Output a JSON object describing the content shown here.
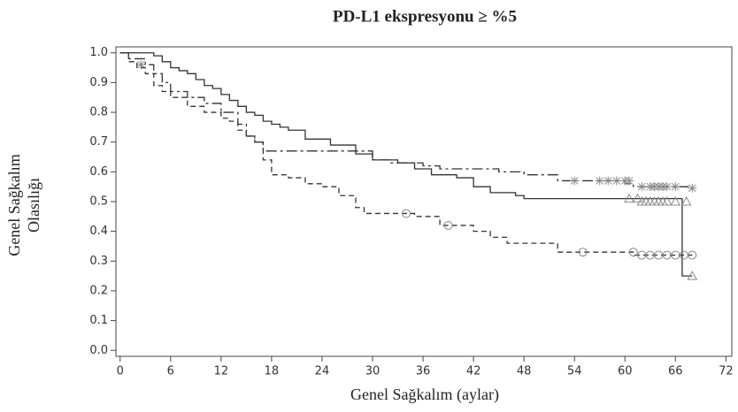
{
  "chart_data": {
    "type": "kaplan-meier",
    "title": "PD-L1 ekspresyonu ≥ %5",
    "x_label": "Genel Sağkalım (aylar)",
    "y_label": [
      "Genel Sağkalım",
      "Olasılığı"
    ],
    "xlim": [
      -0.5,
      72.7
    ],
    "ylim": [
      -0.02,
      1.02
    ],
    "xticks": [
      0,
      6,
      12,
      18,
      24,
      30,
      36,
      42,
      48,
      54,
      60,
      66,
      72
    ],
    "yticks": [
      {
        "value": 0,
        "label": "0.0"
      },
      0.1,
      0.2,
      0.3,
      0.4,
      0.5,
      0.6,
      0.7,
      0.8,
      0.9,
      {
        "value": 1,
        "label": "1.0"
      }
    ],
    "series": [
      {
        "style": "solid",
        "color": "#333333",
        "marker_color": "#888888",
        "censor_marker": "triangle",
        "x": [
          0,
          4,
          5,
          6,
          7,
          8,
          9,
          10,
          11,
          12,
          13,
          14,
          15,
          16,
          17,
          18,
          19,
          20,
          22,
          25,
          28,
          30,
          33,
          35,
          37,
          40,
          42,
          44,
          47,
          48,
          66.8
        ],
        "y": [
          1.0,
          0.99,
          0.97,
          0.95,
          0.94,
          0.93,
          0.91,
          0.89,
          0.88,
          0.86,
          0.84,
          0.82,
          0.8,
          0.79,
          0.77,
          0.76,
          0.75,
          0.74,
          0.71,
          0.69,
          0.66,
          0.64,
          0.63,
          0.61,
          0.59,
          0.58,
          0.55,
          0.53,
          0.52,
          0.51,
          0.25
        ],
        "censor_x": [
          60.5,
          61.5,
          62,
          62.5,
          63,
          63.5,
          64,
          64.5,
          65,
          66,
          67.3,
          68
        ],
        "censor_y": [
          0.51,
          0.51,
          0.5,
          0.5,
          0.5,
          0.5,
          0.5,
          0.5,
          0.5,
          0.5,
          0.5,
          0.25
        ]
      },
      {
        "style": "dashdot",
        "color": "#333333",
        "marker_color": "#888888",
        "censor_marker": "asterisk",
        "x": [
          0,
          1,
          3,
          4,
          5,
          6,
          8,
          10,
          12,
          14,
          15,
          16,
          17,
          30,
          32,
          36,
          38,
          45,
          48,
          52,
          60,
          61
        ],
        "y": [
          1.0,
          0.98,
          0.96,
          0.93,
          0.9,
          0.87,
          0.85,
          0.83,
          0.8,
          0.76,
          0.72,
          0.7,
          0.67,
          0.64,
          0.63,
          0.62,
          0.61,
          0.6,
          0.59,
          0.57,
          0.56,
          0.55
        ],
        "censor_x": [
          2.5,
          54,
          57,
          58,
          59,
          60,
          60.5,
          62,
          63,
          63.5,
          64,
          64.5,
          65,
          66,
          68
        ],
        "censor_y": [
          0.96,
          0.57,
          0.57,
          0.57,
          0.57,
          0.57,
          0.57,
          0.55,
          0.55,
          0.55,
          0.55,
          0.55,
          0.55,
          0.55,
          0.545
        ]
      },
      {
        "style": "dashed",
        "color": "#333333",
        "marker_color": "#888888",
        "censor_marker": "circle",
        "x": [
          0,
          1,
          2,
          3,
          4,
          5,
          6,
          8,
          10,
          12,
          13,
          14,
          15,
          16,
          17,
          18,
          20,
          22,
          24,
          26,
          28,
          29,
          35,
          38,
          42,
          44,
          46,
          52,
          61
        ],
        "y": [
          1.0,
          0.97,
          0.95,
          0.93,
          0.89,
          0.87,
          0.85,
          0.82,
          0.8,
          0.78,
          0.77,
          0.74,
          0.72,
          0.7,
          0.64,
          0.59,
          0.58,
          0.56,
          0.55,
          0.52,
          0.48,
          0.46,
          0.45,
          0.42,
          0.4,
          0.38,
          0.36,
          0.33,
          0.32
        ],
        "censor_x": [
          34,
          39,
          55,
          61,
          62,
          63,
          64,
          65,
          66,
          67,
          68
        ],
        "censor_y": [
          0.46,
          0.42,
          0.33,
          0.33,
          0.32,
          0.32,
          0.32,
          0.32,
          0.32,
          0.32,
          0.32
        ]
      }
    ]
  }
}
